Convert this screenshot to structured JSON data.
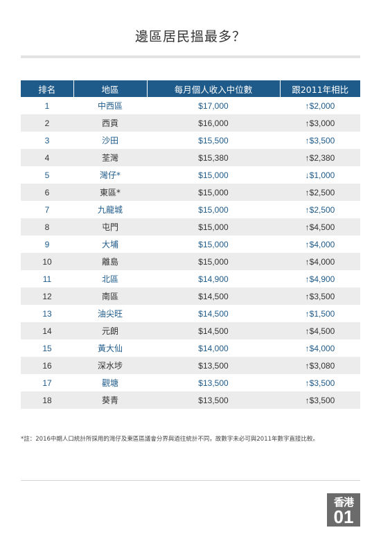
{
  "title": "邊區居民搵最多？",
  "chart_data": {
    "type": "table",
    "columns": [
      "排名",
      "地區",
      "每月個人收入中位數",
      "跟2011年相比"
    ],
    "rows": [
      {
        "rank": "1",
        "district": "中西區",
        "income": "$17,000",
        "change": "↑$2,000"
      },
      {
        "rank": "2",
        "district": "西貢",
        "income": "$16,000",
        "change": "↑$3,000"
      },
      {
        "rank": "3",
        "district": "沙田",
        "income": "$15,500",
        "change": "↑$3,500"
      },
      {
        "rank": "4",
        "district": "荃灣",
        "income": "$15,380",
        "change": "↑$2,380"
      },
      {
        "rank": "5",
        "district": "灣仔*",
        "income": "$15,000",
        "change": "↓$1,000"
      },
      {
        "rank": "6",
        "district": "東區*",
        "income": "$15,000",
        "change": "↑$2,500"
      },
      {
        "rank": "7",
        "district": "九龍城",
        "income": "$15,000",
        "change": "↑$2,500"
      },
      {
        "rank": "8",
        "district": "屯門",
        "income": "$15,000",
        "change": "↑$4,500"
      },
      {
        "rank": "9",
        "district": "大埔",
        "income": "$15,000",
        "change": "↑$4,000"
      },
      {
        "rank": "10",
        "district": "離島",
        "income": "$15,000",
        "change": "↑$4,000"
      },
      {
        "rank": "11",
        "district": "北區",
        "income": "$14,900",
        "change": "↑$4,900"
      },
      {
        "rank": "12",
        "district": "南區",
        "income": "$14,500",
        "change": "↑$3,500"
      },
      {
        "rank": "13",
        "district": "油尖旺",
        "income": "$14,500",
        "change": "↑$1,500"
      },
      {
        "rank": "14",
        "district": "元朗",
        "income": "$14,500",
        "change": "↑$4,500"
      },
      {
        "rank": "15",
        "district": "黃大仙",
        "income": "$14,000",
        "change": "↑$4,000"
      },
      {
        "rank": "16",
        "district": "深水埗",
        "income": "$13,500",
        "change": "↑$3,080"
      },
      {
        "rank": "17",
        "district": "觀塘",
        "income": "$13,500",
        "change": "↑$3,500"
      },
      {
        "rank": "18",
        "district": "葵青",
        "income": "$13,500",
        "change": "↑$3,500"
      }
    ]
  },
  "note": "*註：2016中期人口統計所採用的灣仔及東區區議會分界與過往統計不同，故數字未必可與2011年數字直接比較。",
  "logo": {
    "line1": "香港",
    "line2": "01"
  },
  "colors": {
    "header_bg": "#1f5b8a",
    "odd_row_text": "#1f5b8a",
    "even_row_bg": "#ececec"
  }
}
